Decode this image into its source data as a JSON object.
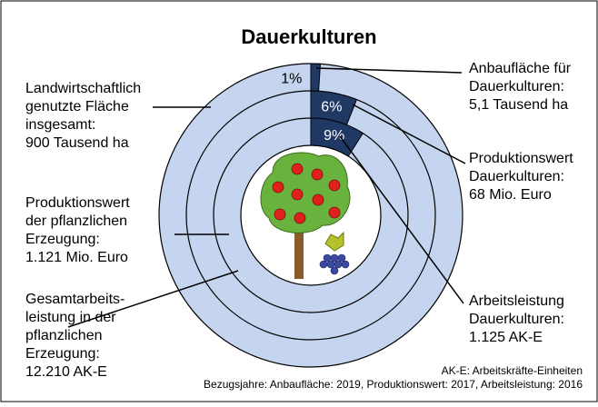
{
  "chart_data": {
    "type": "rings",
    "title": "Dauerkulturen",
    "values": [
      1,
      6,
      9
    ],
    "value_labels": [
      "1%",
      "6%",
      "9%"
    ],
    "total_labels": [
      [
        "Landwirtschaftlich",
        "genutzte Fläche",
        "insgesamt:",
        "900 Tausend ha"
      ],
      [
        "Produktionswert",
        "der pflanzlichen",
        "Erzeugung:",
        "1.121 Mio. Euro"
      ],
      [
        "Gesamtarbeits-",
        "leistung in der",
        "pflanzlichen",
        "Erzeugung:",
        "12.210 AK-E"
      ]
    ],
    "part_labels": [
      [
        "Anbaufläche für",
        "Dauerkulturen:",
        "5,1 Tausend ha"
      ],
      [
        "Produktionswert",
        "Dauerkulturen:",
        "68 Mio. Euro"
      ],
      [
        "Arbeitsleistung",
        "Dauerkulturen:",
        "1.125 AK-E"
      ]
    ],
    "part_color": "#203864",
    "rest_color": "#c5d5ef",
    "notes": [
      "AK-E: Arbeitskräfte-Einheiten",
      "Bezugsjahre: Anbaufläche: 2019, Produktionswert: 2017, Arbeitsleistung: 2016"
    ]
  }
}
